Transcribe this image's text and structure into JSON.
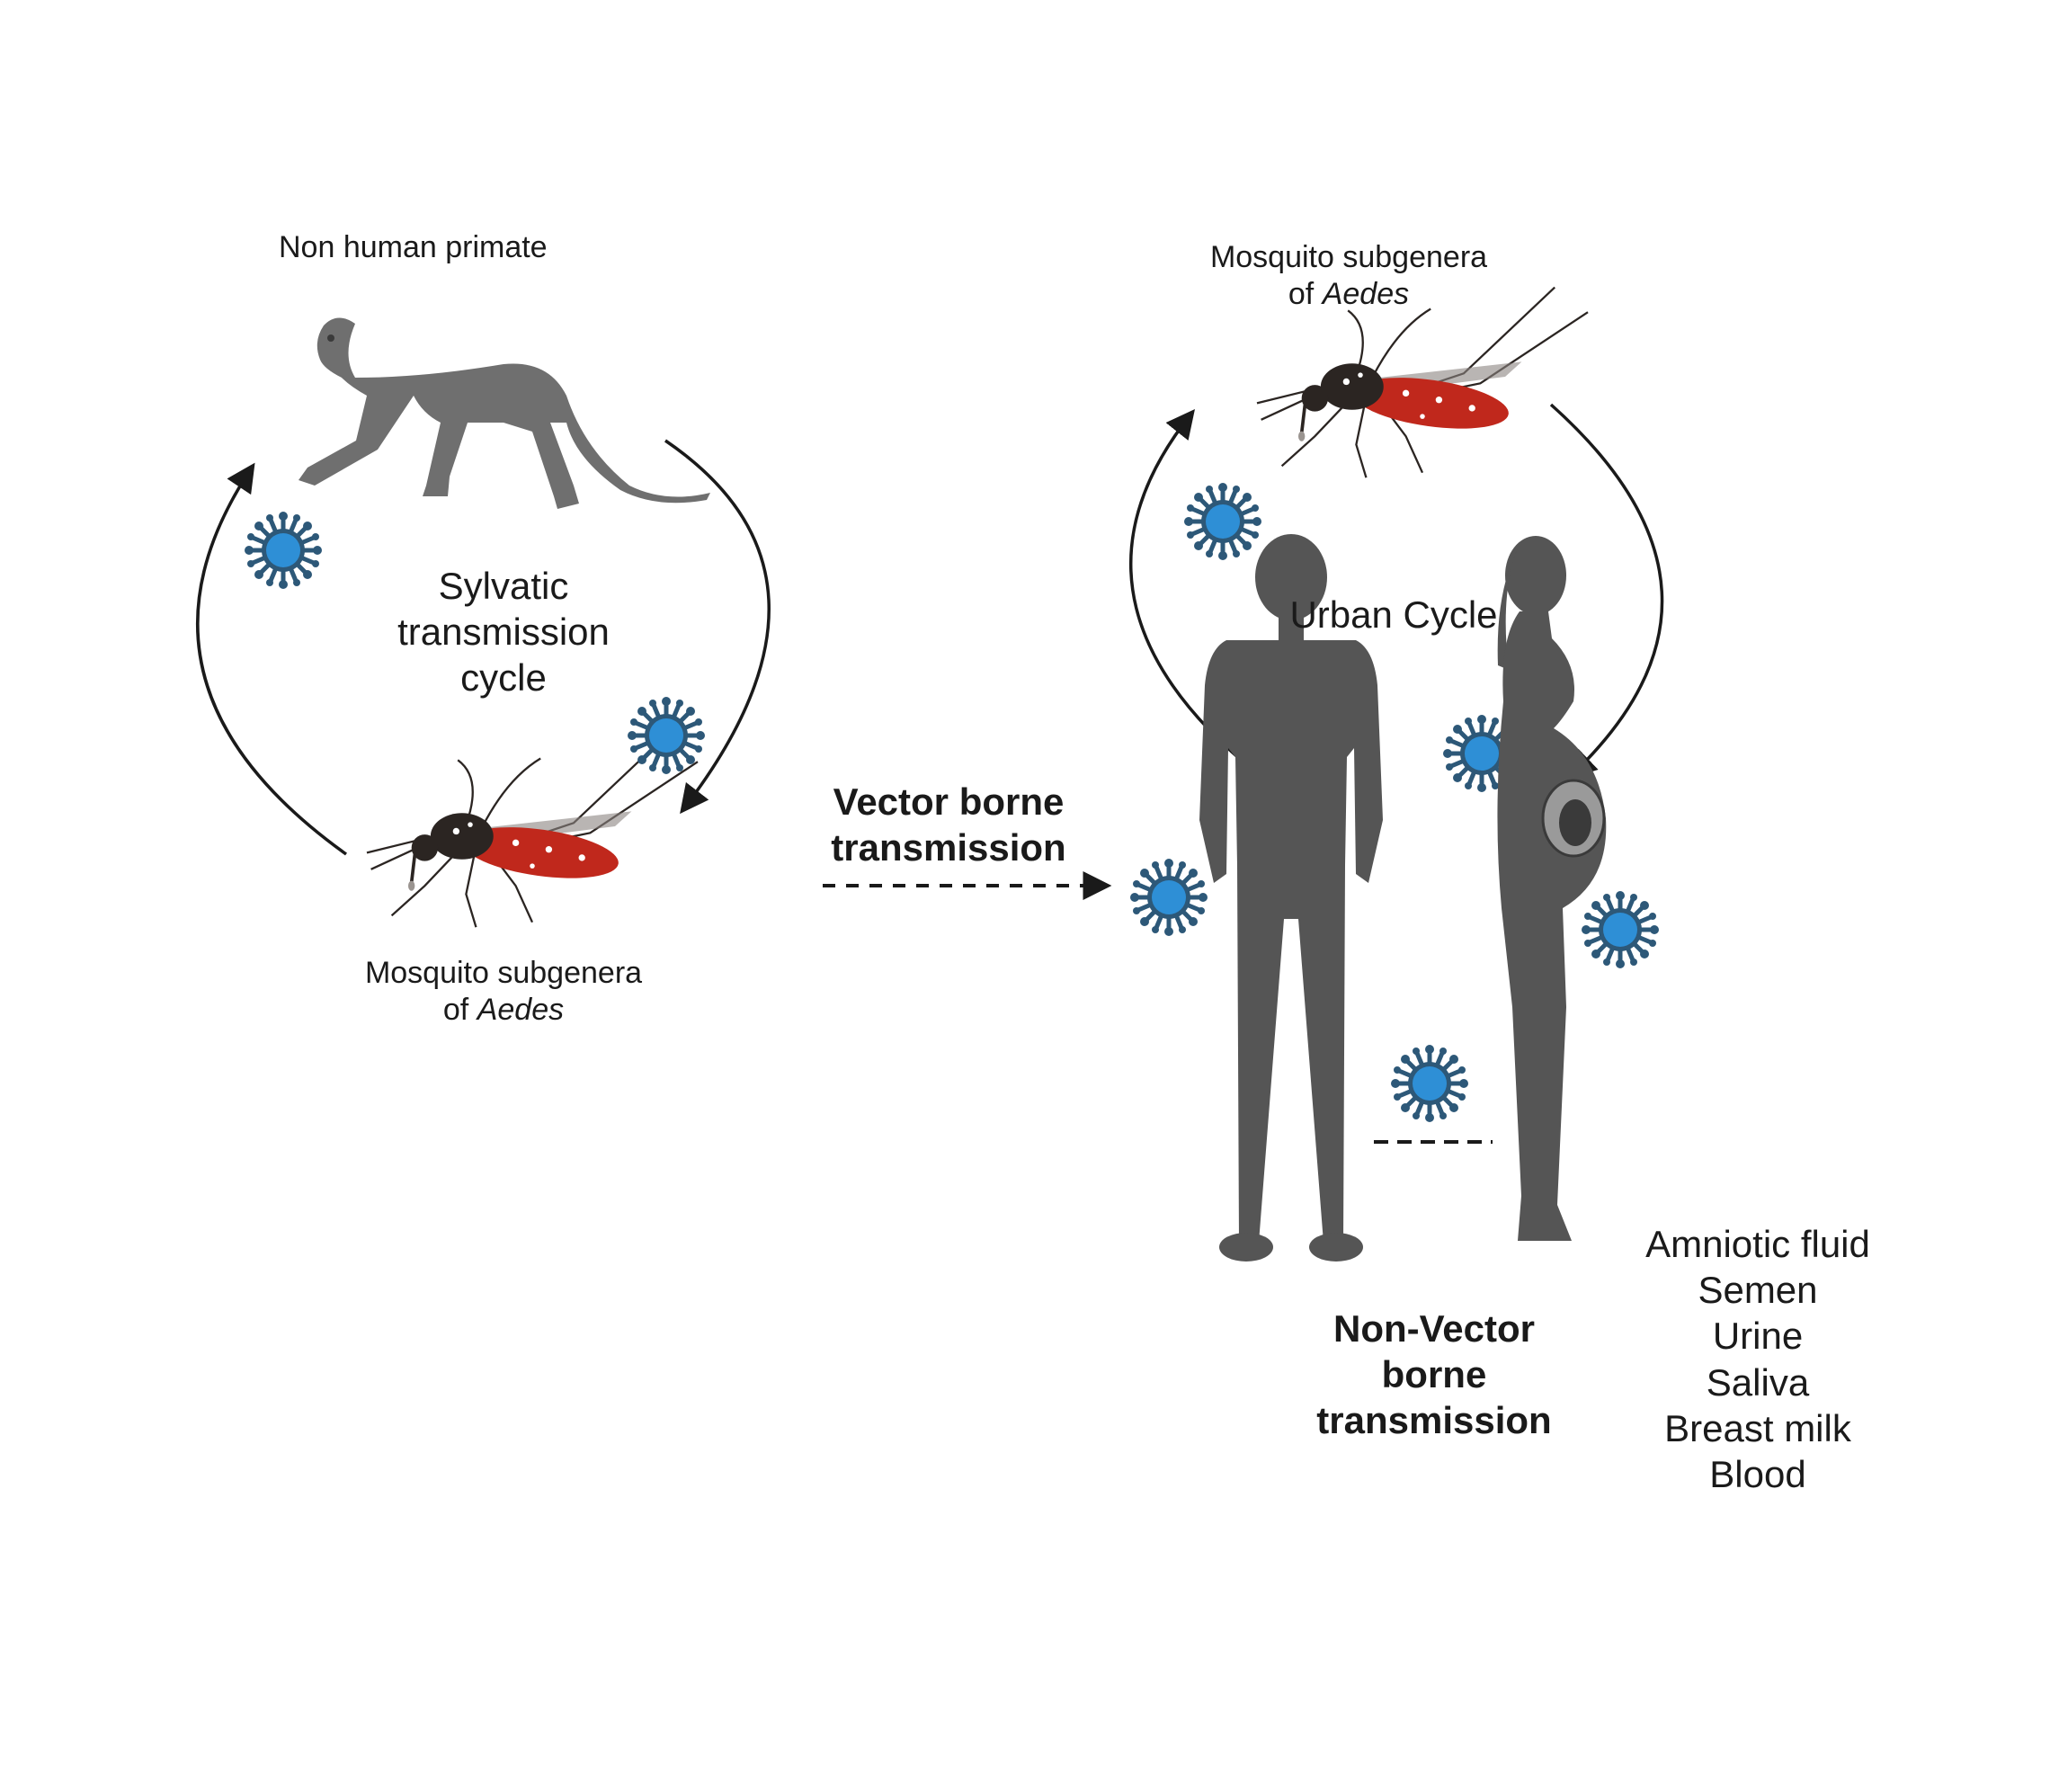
{
  "colors": {
    "background": "#ffffff",
    "arrow": "#1a1a1a",
    "virus": "#2e8fd6",
    "virus_spike": "#2d5878",
    "monkey": "#6f6f6f",
    "human_silhouette": "#555555",
    "mosquito_blood": "#c0281c",
    "mosquito_body": "#2b2522"
  },
  "sylvatic": {
    "primate_label": "Non human primate",
    "cycle_label_lines": [
      "Sylvatic",
      "transmission",
      "cycle"
    ],
    "mosquito_label_line1": "Mosquito subgenera",
    "mosquito_label_prefix": "of ",
    "mosquito_label_genus": "Aedes"
  },
  "urban": {
    "mosquito_label_line1": "Mosquito subgenera",
    "mosquito_label_prefix": "of ",
    "mosquito_label_genus": "Aedes",
    "cycle_label": "Urban Cycle"
  },
  "vector_borne": {
    "label_lines": [
      "Vector borne",
      "transmission"
    ]
  },
  "non_vector_borne": {
    "label_lines": [
      "Non-Vector",
      "borne",
      "transmission"
    ]
  },
  "body_fluids": [
    "Amniotic fluid",
    "Semen",
    "Urine",
    "Saliva",
    "Breast milk",
    "Blood"
  ],
  "icons": {
    "virus": "virus-icon",
    "monkey": "monkey-icon",
    "mosquito": "mosquito-icon",
    "man": "man-silhouette-icon",
    "pregnant_woman": "pregnant-woman-silhouette-icon"
  }
}
